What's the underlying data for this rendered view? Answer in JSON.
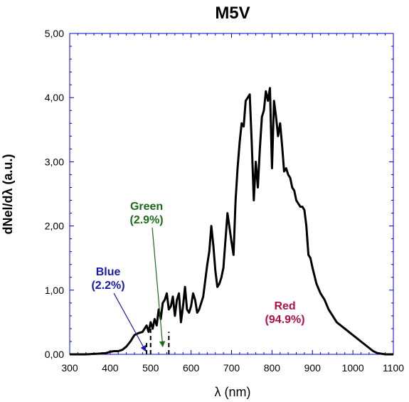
{
  "chart_data": {
    "type": "line",
    "title": "M5V",
    "xlabel": "λ (nm)",
    "ylabel": "dNel/dλ (a.u.)",
    "xlim": [
      300,
      1100
    ],
    "ylim": [
      0,
      5
    ],
    "x_ticks": [
      300,
      400,
      500,
      600,
      700,
      800,
      900,
      1000,
      1100
    ],
    "x_tick_labels": [
      "300",
      "400",
      "500",
      "600",
      "700",
      "800",
      "900",
      "1000",
      "1100"
    ],
    "y_ticks": [
      0,
      1,
      2,
      3,
      4,
      5
    ],
    "y_tick_labels": [
      "0,00",
      "1,00",
      "2,00",
      "3,00",
      "4,00",
      "5,00"
    ],
    "grid": false,
    "series": [
      {
        "color": "#000000",
        "x": [
          300,
          340,
          370,
          390,
          400,
          410,
          420,
          430,
          440,
          450,
          460,
          470,
          480,
          490,
          495,
          500,
          505,
          510,
          515,
          520,
          525,
          530,
          535,
          540,
          545,
          550,
          555,
          560,
          565,
          570,
          575,
          580,
          585,
          590,
          595,
          600,
          605,
          610,
          615,
          620,
          630,
          640,
          645,
          650,
          655,
          660,
          665,
          670,
          675,
          680,
          690,
          700,
          705,
          710,
          715,
          720,
          725,
          730,
          735,
          740,
          745,
          750,
          755,
          760,
          765,
          770,
          775,
          780,
          785,
          790,
          795,
          800,
          805,
          810,
          815,
          820,
          825,
          830,
          835,
          840,
          845,
          850,
          855,
          860,
          865,
          870,
          875,
          880,
          885,
          890,
          895,
          900,
          910,
          920,
          930,
          940,
          950,
          960,
          970,
          980,
          990,
          1000,
          1010,
          1020,
          1030,
          1040,
          1050,
          1060,
          1070,
          1080,
          1090,
          1100
        ],
        "y": [
          0.0,
          0.0,
          0.01,
          0.02,
          0.04,
          0.05,
          0.05,
          0.07,
          0.12,
          0.2,
          0.3,
          0.33,
          0.35,
          0.45,
          0.35,
          0.5,
          0.4,
          0.55,
          0.45,
          0.7,
          0.55,
          0.8,
          0.85,
          0.95,
          0.7,
          0.75,
          0.9,
          0.6,
          0.85,
          0.95,
          0.5,
          0.75,
          1.05,
          0.7,
          0.65,
          0.75,
          0.95,
          0.85,
          0.65,
          0.7,
          0.9,
          1.4,
          1.6,
          2.0,
          1.7,
          1.3,
          1.05,
          1.1,
          1.2,
          1.35,
          2.2,
          1.75,
          1.55,
          2.4,
          2.9,
          3.3,
          3.6,
          3.55,
          3.95,
          4.0,
          4.05,
          3.3,
          2.4,
          3.0,
          2.6,
          3.2,
          3.7,
          3.8,
          4.1,
          3.95,
          4.15,
          2.9,
          3.95,
          3.7,
          3.4,
          3.6,
          3.25,
          2.85,
          2.9,
          2.8,
          2.75,
          2.6,
          2.55,
          2.4,
          2.35,
          2.3,
          2.3,
          2.25,
          2.0,
          1.55,
          1.5,
          1.35,
          1.1,
          0.95,
          0.85,
          0.7,
          0.6,
          0.5,
          0.45,
          0.4,
          0.35,
          0.3,
          0.25,
          0.2,
          0.15,
          0.1,
          0.05,
          0.02,
          0.01,
          0.0,
          0.0,
          0.0
        ]
      }
    ],
    "boundaries": [
      {
        "x": 490,
        "style": "dashed",
        "y_top": 0.22
      },
      {
        "x": 500,
        "style": "dashed",
        "y_top": 0.5
      },
      {
        "x": 545,
        "style": "dashed",
        "y_top": 0.35
      }
    ],
    "annotations": [
      {
        "label": "Green",
        "sublabel": "(2.9%)",
        "color": "#1a6b1a",
        "text_x": 490,
        "text_y": 2.25,
        "arrow_x": 530,
        "arrow_y": 0.12
      },
      {
        "label": "Blue",
        "sublabel": "(2.2%)",
        "color": "#1a1aaa",
        "text_x": 395,
        "text_y": 1.23,
        "arrow_x": 488,
        "arrow_y": 0.05
      },
      {
        "label": "Red",
        "sublabel": "(94.9%)",
        "color": "#b0104a",
        "text_x": 832,
        "text_y": 0.7,
        "arrow_x": null,
        "arrow_y": null
      }
    ],
    "axis_color": "#0000cc"
  }
}
